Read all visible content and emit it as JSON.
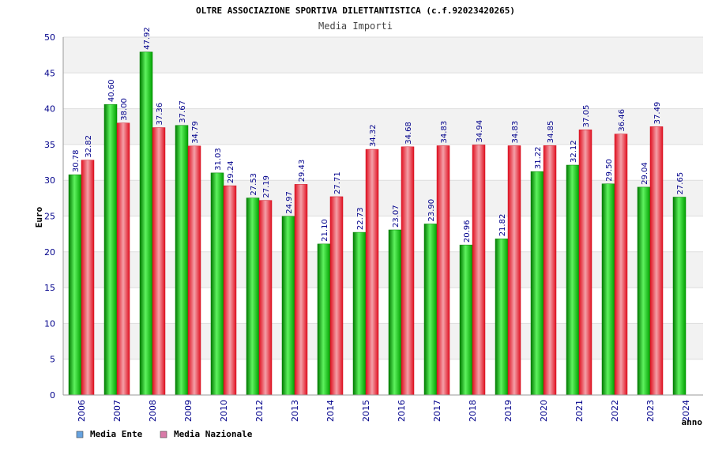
{
  "chart_data": {
    "type": "bar",
    "title": "OLTRE ASSOCIAZIONE SPORTIVA DILETTANTISTICA (c.f.92023420265)",
    "subtitle": "Media Importi",
    "xlabel": "anno",
    "ylabel": "Euro",
    "ylim": [
      0,
      50
    ],
    "yticks": [
      0,
      5,
      10,
      15,
      20,
      25,
      30,
      35,
      40,
      45,
      50
    ],
    "grid": true,
    "legend_position": "bottom-left",
    "categories": [
      "2006",
      "2007",
      "2008",
      "2009",
      "2010",
      "2012",
      "2013",
      "2014",
      "2015",
      "2016",
      "2017",
      "2018",
      "2019",
      "2020",
      "2021",
      "2022",
      "2023",
      "2024"
    ],
    "series": [
      {
        "name": "Media Ente",
        "color": "#00b000",
        "legend_color": "#66a3e0",
        "values": [
          30.78,
          40.6,
          47.92,
          37.67,
          31.03,
          27.53,
          24.97,
          21.1,
          22.73,
          23.07,
          23.9,
          20.96,
          21.82,
          31.22,
          32.12,
          29.5,
          29.04,
          27.65
        ],
        "labels": [
          "30.78",
          "40.60",
          "47.92",
          "37.67",
          "31.03",
          "27.53",
          "24.97",
          "21.10",
          "22.73",
          "23.07",
          "23.90",
          "20.96",
          "21.82",
          "31.22",
          "32.12",
          "29.50",
          "29.04",
          "27.65"
        ]
      },
      {
        "name": "Media Nazionale",
        "color": "#e0202a",
        "legend_color": "#d97aa8",
        "values": [
          32.82,
          38.0,
          37.36,
          34.79,
          29.24,
          27.19,
          29.43,
          27.71,
          34.32,
          34.68,
          34.83,
          34.94,
          34.83,
          34.85,
          37.05,
          36.46,
          37.49,
          null
        ],
        "labels": [
          "32.82",
          "38.00",
          "37.36",
          "34.79",
          "29.24",
          "27.19",
          "29.43",
          "27.71",
          "34.32",
          "34.68",
          "34.83",
          "34.94",
          "34.83",
          "34.85",
          "37.05",
          "36.46",
          "37.49",
          null
        ]
      }
    ]
  }
}
